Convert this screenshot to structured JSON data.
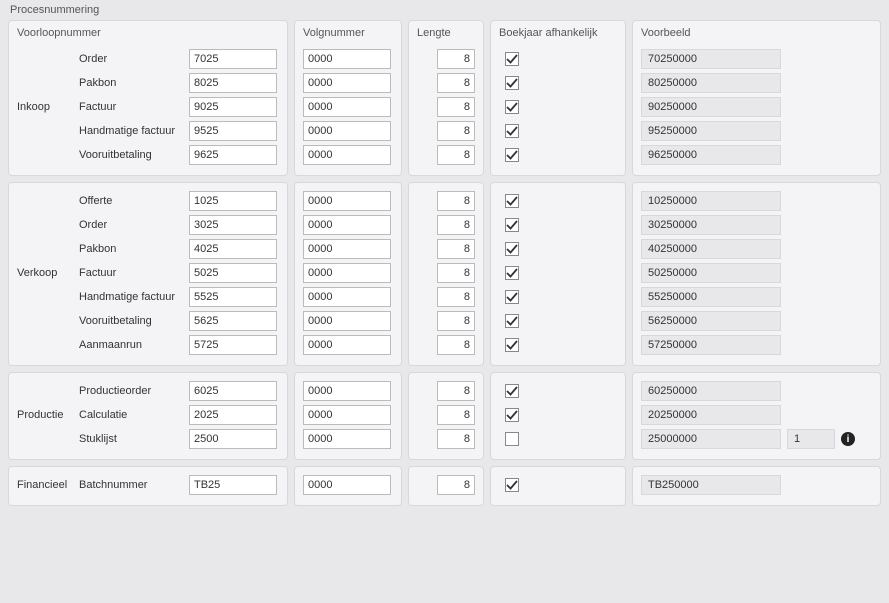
{
  "pageTitle": "Procesnummering",
  "headers": {
    "voorloop": "Voorloopnummer",
    "volg": "Volgnummer",
    "lengte": "Lengte",
    "boekjaar": "Boekjaar afhankelijk",
    "voorbeeld": "Voorbeeld"
  },
  "groups": [
    {
      "category": "Inkoop",
      "rows": [
        {
          "label": "Order",
          "voorloop": "7025",
          "volg": "0000",
          "lengte": "8",
          "boekjaar": true,
          "voorbeeld": "70250000"
        },
        {
          "label": "Pakbon",
          "voorloop": "8025",
          "volg": "0000",
          "lengte": "8",
          "boekjaar": true,
          "voorbeeld": "80250000"
        },
        {
          "label": "Factuur",
          "voorloop": "9025",
          "volg": "0000",
          "lengte": "8",
          "boekjaar": true,
          "voorbeeld": "90250000"
        },
        {
          "label": "Handmatige factuur",
          "voorloop": "9525",
          "volg": "0000",
          "lengte": "8",
          "boekjaar": true,
          "voorbeeld": "95250000"
        },
        {
          "label": "Vooruitbetaling",
          "voorloop": "9625",
          "volg": "0000",
          "lengte": "8",
          "boekjaar": true,
          "voorbeeld": "96250000"
        }
      ]
    },
    {
      "category": "Verkoop",
      "rows": [
        {
          "label": "Offerte",
          "voorloop": "1025",
          "volg": "0000",
          "lengte": "8",
          "boekjaar": true,
          "voorbeeld": "10250000"
        },
        {
          "label": "Order",
          "voorloop": "3025",
          "volg": "0000",
          "lengte": "8",
          "boekjaar": true,
          "voorbeeld": "30250000"
        },
        {
          "label": "Pakbon",
          "voorloop": "4025",
          "volg": "0000",
          "lengte": "8",
          "boekjaar": true,
          "voorbeeld": "40250000"
        },
        {
          "label": "Factuur",
          "voorloop": "5025",
          "volg": "0000",
          "lengte": "8",
          "boekjaar": true,
          "voorbeeld": "50250000"
        },
        {
          "label": "Handmatige factuur",
          "voorloop": "5525",
          "volg": "0000",
          "lengte": "8",
          "boekjaar": true,
          "voorbeeld": "55250000"
        },
        {
          "label": "Vooruitbetaling",
          "voorloop": "5625",
          "volg": "0000",
          "lengte": "8",
          "boekjaar": true,
          "voorbeeld": "56250000"
        },
        {
          "label": "Aanmaanrun",
          "voorloop": "5725",
          "volg": "0000",
          "lengte": "8",
          "boekjaar": true,
          "voorbeeld": "57250000"
        }
      ]
    },
    {
      "category": "Productie",
      "rows": [
        {
          "label": "Productieorder",
          "voorloop": "6025",
          "volg": "0000",
          "lengte": "8",
          "boekjaar": true,
          "voorbeeld": "60250000"
        },
        {
          "label": "Calculatie",
          "voorloop": "2025",
          "volg": "0000",
          "lengte": "8",
          "boekjaar": true,
          "voorbeeld": "20250000"
        },
        {
          "label": "Stuklijst",
          "voorloop": "2500",
          "volg": "0000",
          "lengte": "8",
          "boekjaar": false,
          "voorbeeld": "25000000",
          "voorbeeld2": "1",
          "info": true
        }
      ]
    },
    {
      "category": "Financieel",
      "rows": [
        {
          "label": "Batchnummer",
          "voorloop": "TB25",
          "volg": "0000",
          "lengte": "8",
          "boekjaar": true,
          "voorbeeld": "TB250000"
        }
      ]
    }
  ]
}
